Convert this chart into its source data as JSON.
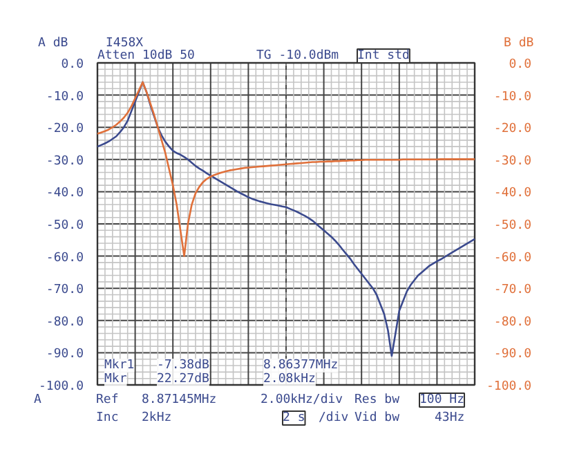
{
  "chart_data": {
    "type": "line",
    "categories": [
      null,
      null,
      null,
      null,
      null,
      null,
      null,
      null,
      null,
      null,
      null,
      null,
      null,
      null,
      null,
      null,
      null,
      null,
      null,
      null,
      null,
      null,
      null,
      null,
      null,
      null,
      null,
      null,
      null,
      null,
      null,
      null,
      null,
      null,
      null,
      null,
      null,
      null,
      null,
      null,
      null,
      null,
      null,
      null,
      null,
      null,
      null,
      null,
      null,
      null,
      null,
      null,
      null,
      null,
      null,
      null,
      null,
      null,
      null,
      null,
      null,
      null,
      null,
      null,
      null,
      null,
      null,
      null,
      null,
      null,
      null,
      null,
      null,
      null,
      null,
      null,
      null,
      null,
      null,
      null,
      null,
      null,
      null,
      null,
      null,
      null,
      null,
      null,
      null,
      null,
      null,
      null,
      null,
      null,
      null,
      null,
      null,
      null,
      null,
      null,
      null
    ],
    "series": [
      {
        "color": "#3b4a8e",
        "values": [
          -26,
          -25.5,
          -25,
          -24.4,
          -23.6,
          -22.8,
          -21.5,
          -20,
          -18,
          -15,
          -12,
          -9,
          -6,
          -9,
          -13,
          -16.5,
          -20,
          -22.5,
          -24.5,
          -26,
          -27.3,
          -28,
          -28.5,
          -29.2,
          -30,
          -31,
          -32,
          -32.8,
          -33.5,
          -34.3,
          -35,
          -35.7,
          -36.4,
          -37.1,
          -37.8,
          -38.5,
          -39.2,
          -39.9,
          -40.5,
          -41.1,
          -41.7,
          -42.2,
          -42.6,
          -43,
          -43.3,
          -43.6,
          -43.9,
          -44.1,
          -44.3,
          -44.6,
          -44.8,
          -45.3,
          -45.8,
          -46.3,
          -46.9,
          -47.5,
          -48.2,
          -49,
          -50,
          -51,
          -52,
          -53,
          -54,
          -55.2,
          -56.5,
          -58,
          -59.4,
          -60.8,
          -62.5,
          -64,
          -65.5,
          -67,
          -68.5,
          -70,
          -72,
          -75,
          -78,
          -83,
          -91,
          -84,
          -77,
          -74,
          -71,
          -69,
          -67.5,
          -66,
          -65,
          -64,
          -63,
          -62.3,
          -61.6,
          -61,
          -60.3,
          -59.6,
          -58.9,
          -58.2,
          -57.5,
          -56.8,
          -56.1,
          -55.4,
          -54.7
        ]
      },
      {
        "color": "#e0703a",
        "axis": "y2",
        "values": [
          -22,
          -21.6,
          -21.2,
          -20.7,
          -20,
          -19.2,
          -18.2,
          -17,
          -15.5,
          -13.5,
          -11,
          -8.5,
          -6,
          -9,
          -12.5,
          -16,
          -20,
          -24,
          -28,
          -33,
          -38,
          -44,
          -52,
          -60,
          -50,
          -44,
          -40.5,
          -38.5,
          -37,
          -36,
          -35.3,
          -34.8,
          -34.4,
          -34,
          -33.7,
          -33.4,
          -33.2,
          -33,
          -32.8,
          -32.6,
          -32.5,
          -32.4,
          -32.3,
          -32.2,
          -32.1,
          -32,
          -31.9,
          -31.8,
          -31.7,
          -31.6,
          -31.5,
          -31.4,
          -31.3,
          -31.2,
          -31.1,
          -31,
          -30.9,
          -30.8,
          -30.8,
          -30.7,
          -30.7,
          -30.6,
          -30.6,
          -30.5,
          -30.5,
          -30.4,
          -30.4,
          -30.3,
          -30.3,
          -30.2,
          -30.2,
          -30.1,
          -30.1,
          -30.1,
          -30.1,
          -30.1,
          -30.1,
          -30.1,
          -30.1,
          -30.1,
          -30.1,
          -30,
          -30,
          -30,
          -30,
          -30,
          -30,
          -30,
          -30,
          -30,
          -30,
          -29.9,
          -29.9,
          -29.9,
          -29.9,
          -29.9,
          -29.9,
          -29.9,
          -29.9,
          -29.9,
          -29.9
        ]
      }
    ],
    "ylabel": "A dB",
    "y2label": "B dB",
    "ylim": [
      -100,
      0
    ],
    "yticks": [
      {
        "value": 0,
        "label": "0.0"
      },
      {
        "value": -10,
        "label": "-10.0"
      },
      {
        "value": -20,
        "label": "-20.0"
      },
      {
        "value": -30,
        "label": "-30.0"
      },
      {
        "value": -40,
        "label": "-40.0"
      },
      {
        "value": -50,
        "label": "-50.0"
      },
      {
        "value": -60,
        "label": "-60.0"
      },
      {
        "value": -70,
        "label": "-70.0"
      },
      {
        "value": -80,
        "label": "-80.0"
      },
      {
        "value": -90,
        "label": "-90.0"
      },
      {
        "value": -100,
        "label": "-100.0"
      }
    ],
    "y2lim": [
      -100,
      0
    ],
    "y2ticks": [
      {
        "value": 0,
        "label": "0.0"
      },
      {
        "value": -10,
        "label": "-10.0"
      },
      {
        "value": -20,
        "label": "-20.0"
      },
      {
        "value": -30,
        "label": "-30.0"
      },
      {
        "value": -40,
        "label": "-40.0"
      },
      {
        "value": -50,
        "label": "-50.0"
      },
      {
        "value": -60,
        "label": "-60.0"
      },
      {
        "value": -70,
        "label": "-70.0"
      },
      {
        "value": -80,
        "label": "-80.0"
      },
      {
        "value": -90,
        "label": "-90.0"
      },
      {
        "value": -100,
        "label": "-100.0"
      }
    ],
    "grid": true,
    "marker": "none",
    "line_style": "solid",
    "annotations": [
      "I458X",
      "Atten 10dB  50",
      "TG -10.0dBm",
      "Int std",
      "Mkr1",
      "-7.38dB",
      "8.86377MHz",
      "Mkr",
      "22.27dB",
      "2.08kHz",
      "A",
      "Ref",
      "8.87145MHz",
      "2.00kHz/div",
      "Res bw",
      "100 Hz",
      "Inc",
      "2kHz",
      "2 s",
      "/div",
      "Vid bw",
      "43Hz"
    ]
  }
}
